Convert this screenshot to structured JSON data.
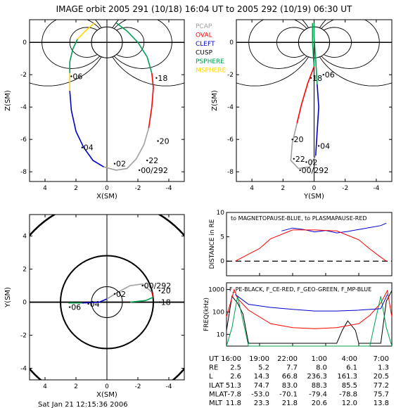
{
  "title": "IMAGE orbit 2005 291 (10/18) 16:04 UT to 2005 292 (10/19) 06:30 UT",
  "footer": "Sat Jan 21 12:15:36 2006",
  "legend": [
    {
      "label": "PCAP",
      "color": "#a0a0a0"
    },
    {
      "label": "OVAL",
      "color": "#ff0000"
    },
    {
      "label": "CLEFT",
      "color": "#0000cc"
    },
    {
      "label": "CUSP",
      "color": "#000000"
    },
    {
      "label": "PSPHERE",
      "color": "#00a050"
    },
    {
      "label": "MSPHERE",
      "color": "#ffd700"
    }
  ],
  "colors": {
    "pcap": "#a0a0a0",
    "oval": "#ff0000",
    "cleft": "#0000cc",
    "cusp": "#000000",
    "psphere": "#00a050",
    "msphere": "#ffd700"
  },
  "chart_data": [
    {
      "type": "line",
      "name": "xz-plane",
      "xlabel": "X(SM)",
      "ylabel": "Z(SM)",
      "xlim": [
        5,
        -5
      ],
      "ylim": [
        -8.6,
        1.4
      ],
      "xticks": [
        "4",
        "2",
        "0",
        "-2",
        "-4"
      ],
      "yticks": [
        "0",
        "-2",
        "-4",
        "-6",
        "-8"
      ],
      "hour_labels": [
        {
          "text": "06",
          "x": 2.3,
          "z": -2.1
        },
        {
          "text": "18",
          "x": -3.2,
          "z": -2.2
        },
        {
          "text": "04",
          "x": 1.6,
          "z": -6.5
        },
        {
          "text": "20",
          "x": -3.3,
          "z": -6.1
        },
        {
          "text": "02",
          "x": -0.5,
          "z": -7.5
        },
        {
          "text": "22",
          "x": -2.6,
          "z": -7.3
        },
        {
          "text": "00/292",
          "x": -2.1,
          "z": -7.9
        }
      ],
      "orbit": [
        {
          "seg": "msphere",
          "pts": [
            [
              0.8,
              1.2
            ],
            [
              1.4,
              0.7
            ],
            [
              1.9,
              0.2
            ]
          ]
        },
        {
          "seg": "psphere",
          "pts": [
            [
              1.9,
              0.2
            ],
            [
              2.2,
              -0.4
            ],
            [
              2.4,
              -1.2
            ],
            [
              2.4,
              -1.9
            ]
          ]
        },
        {
          "seg": "msphere",
          "pts": [
            [
              2.4,
              -1.9
            ],
            [
              2.4,
              -3.0
            ]
          ]
        },
        {
          "seg": "cleft",
          "pts": [
            [
              2.4,
              -3.0
            ],
            [
              2.3,
              -4.2
            ],
            [
              2.0,
              -5.5
            ],
            [
              1.5,
              -6.5
            ],
            [
              0.9,
              -7.3
            ],
            [
              0.2,
              -7.7
            ]
          ]
        },
        {
          "seg": "pcap",
          "pts": [
            [
              0.2,
              -7.7
            ],
            [
              -0.6,
              -7.9
            ],
            [
              -1.3,
              -7.8
            ],
            [
              -1.9,
              -7.2
            ],
            [
              -2.4,
              -6.3
            ],
            [
              -2.7,
              -5.3
            ]
          ]
        },
        {
          "seg": "oval",
          "pts": [
            [
              -2.7,
              -5.3
            ],
            [
              -2.9,
              -4.0
            ],
            [
              -3.0,
              -2.8
            ],
            [
              -2.9,
              -1.9
            ]
          ]
        },
        {
          "seg": "psphere",
          "pts": [
            [
              -2.9,
              -1.9
            ],
            [
              -2.6,
              -0.9
            ],
            [
              -2.0,
              0.0
            ],
            [
              -1.3,
              0.7
            ],
            [
              -0.6,
              1.2
            ]
          ]
        }
      ]
    },
    {
      "type": "line",
      "name": "yz-plane",
      "xlabel": "Y(SM)",
      "ylabel": "Z(SM)",
      "xlim": [
        5,
        -5
      ],
      "ylim": [
        -8.6,
        1.4
      ],
      "xticks": [
        "4",
        "2",
        "0",
        "-2",
        "-4"
      ],
      "yticks": [
        "0",
        "-2",
        "-4",
        "-6",
        "-8"
      ],
      "hour_labels": [
        {
          "text": "18",
          "x": 0.2,
          "z": -2.2
        },
        {
          "text": "06",
          "x": -0.6,
          "z": -2.0
        },
        {
          "text": "20",
          "x": 1.4,
          "z": -6.0
        },
        {
          "text": "04",
          "x": -0.3,
          "z": -6.4
        },
        {
          "text": "22",
          "x": 1.3,
          "z": -7.2
        },
        {
          "text": "02",
          "x": 0.5,
          "z": -7.4
        },
        {
          "text": "00/292",
          "x": 0.9,
          "z": -7.9
        }
      ],
      "orbit": [
        {
          "seg": "psphere",
          "pts": [
            [
              0.1,
              1.2
            ],
            [
              0.1,
              0.0
            ],
            [
              0.0,
              -1.5
            ]
          ]
        },
        {
          "seg": "oval",
          "pts": [
            [
              0.0,
              -1.5
            ],
            [
              0.4,
              -2.5
            ],
            [
              0.8,
              -3.8
            ],
            [
              1.1,
              -5.0
            ]
          ]
        },
        {
          "seg": "pcap",
          "pts": [
            [
              1.1,
              -5.0
            ],
            [
              1.4,
              -6.2
            ],
            [
              1.5,
              -7.3
            ],
            [
              1.0,
              -7.8
            ],
            [
              0.3,
              -7.7
            ],
            [
              -0.1,
              -7.0
            ]
          ]
        },
        {
          "seg": "cleft",
          "pts": [
            [
              -0.1,
              -7.0
            ],
            [
              -0.2,
              -5.5
            ],
            [
              -0.3,
              -4.0
            ],
            [
              -0.2,
              -2.6
            ]
          ]
        },
        {
          "seg": "psphere",
          "pts": [
            [
              -0.2,
              -2.6
            ],
            [
              -0.1,
              -1.0
            ],
            [
              0.0,
              0.3
            ],
            [
              0.0,
              1.2
            ]
          ]
        }
      ]
    },
    {
      "type": "line",
      "name": "xy-plane",
      "xlabel": "X(SM)",
      "ylabel": "Y(SM)",
      "xlim": [
        5,
        -5
      ],
      "ylim": [
        -4.7,
        5.3
      ],
      "xticks": [
        "4",
        "2",
        "0",
        "-2",
        "-4"
      ],
      "yticks": [
        "-4",
        "-2",
        "0",
        "2",
        "4"
      ],
      "hour_labels": [
        {
          "text": "06",
          "x": 2.4,
          "y": -0.3
        },
        {
          "text": "04",
          "x": 1.2,
          "y": -0.1
        },
        {
          "text": "18",
          "x": -3.4,
          "y": 0.0
        },
        {
          "text": "20",
          "x": -3.4,
          "y": 0.7
        },
        {
          "text": "02",
          "x": -0.5,
          "y": 0.5
        },
        {
          "text": "00/292",
          "x": -2.3,
          "y": 1.0
        }
      ],
      "orbit": [
        {
          "seg": "psphere",
          "pts": [
            [
              2.5,
              -0.05
            ],
            [
              1.6,
              -0.05
            ]
          ]
        },
        {
          "seg": "cleft",
          "pts": [
            [
              1.6,
              -0.05
            ],
            [
              0.5,
              0.0
            ],
            [
              0.0,
              0.2
            ]
          ]
        },
        {
          "seg": "pcap",
          "pts": [
            [
              0.0,
              0.2
            ],
            [
              -0.7,
              0.6
            ],
            [
              -1.5,
              1.0
            ],
            [
              -2.3,
              1.1
            ],
            [
              -2.9,
              0.6
            ]
          ]
        },
        {
          "seg": "oval",
          "pts": [
            [
              -2.9,
              0.6
            ],
            [
              -3.0,
              0.3
            ]
          ]
        },
        {
          "seg": "psphere",
          "pts": [
            [
              -3.0,
              0.3
            ],
            [
              -2.5,
              0.1
            ],
            [
              -1.5,
              0.0
            ]
          ]
        }
      ]
    },
    {
      "type": "line",
      "name": "distance",
      "ylabel": "DISTANCE in RE",
      "subtitle": "to MAGNETOPAUSE-BLUE, to PLASMAPAUSE-RED",
      "xlim": [
        16,
        31
      ],
      "ylim": [
        -3,
        10
      ],
      "yticks": [
        "10",
        "5",
        "0"
      ],
      "series": [
        {
          "name": "magnetopause",
          "color": "#0000cc",
          "x": [
            21,
            22,
            23,
            24,
            25,
            26,
            27,
            28,
            29,
            30,
            30.5
          ],
          "y": [
            6.2,
            6.8,
            6.5,
            6.0,
            6.3,
            5.8,
            6.1,
            6.5,
            6.9,
            7.3,
            7.8
          ]
        },
        {
          "name": "plasmapause",
          "color": "#ff0000",
          "x": [
            16.8,
            19,
            20,
            22,
            24,
            26,
            28,
            29,
            30,
            30.5
          ],
          "y": [
            0,
            2.6,
            4.6,
            6.4,
            6.4,
            6.2,
            4.4,
            2.5,
            0.8,
            0
          ]
        }
      ]
    },
    {
      "type": "line",
      "name": "frequency",
      "ylabel": "FREQ(kHz)",
      "subtitle": "F_PE-BLACK, F_CE-RED, F_GEO-GREEN, F_MP-BLUE",
      "xlim": [
        16,
        31
      ],
      "ylim_log": [
        3,
        2000
      ],
      "yticks": [
        "1000",
        "100",
        "10"
      ],
      "series": [
        {
          "name": "F_PE",
          "color": "#000000",
          "x": [
            16,
            16.5,
            17,
            17.5,
            18,
            19,
            20,
            22,
            24,
            26,
            26.5,
            27,
            27.7,
            28,
            29,
            30,
            30.5,
            31
          ],
          "y": [
            15,
            500,
            250,
            80,
            4,
            4,
            4,
            4,
            4,
            4,
            15,
            40,
            15,
            4,
            4,
            4,
            300,
            900
          ]
        },
        {
          "name": "F_CE",
          "color": "#ff0000",
          "x": [
            16,
            16.7,
            17,
            18,
            20,
            22,
            24,
            26,
            28,
            29,
            30,
            30.6,
            31
          ],
          "y": [
            60,
            1000,
            400,
            120,
            30,
            20,
            18,
            20,
            30,
            70,
            250,
            900,
            60
          ]
        },
        {
          "name": "F_GEO",
          "color": "#00a050",
          "x": [
            16,
            16.5,
            17,
            17.5,
            18,
            29,
            29.5,
            30,
            30.5,
            31
          ],
          "y": [
            3,
            20,
            500,
            40,
            3,
            3,
            40,
            500,
            20,
            3
          ]
        },
        {
          "name": "F_MP",
          "color": "#0000cc",
          "x": [
            16.8,
            18,
            20,
            22,
            24,
            26,
            28,
            30,
            30.6
          ],
          "y": [
            600,
            220,
            160,
            130,
            110,
            110,
            120,
            140,
            600
          ]
        }
      ]
    },
    {
      "type": "table",
      "name": "ephemeris",
      "columns": [
        "16:00",
        "19:00",
        "22:00",
        "1:00",
        "4:00",
        "7:00"
      ],
      "col_header": "UT",
      "rows": [
        {
          "label": "RE",
          "values": [
            "2.5",
            "5.2",
            "7.7",
            "8.0",
            "6.1",
            "1.3"
          ]
        },
        {
          "label": "L",
          "values": [
            "2.6",
            "14.3",
            "66.8",
            "236.3",
            "161.3",
            "20.5"
          ]
        },
        {
          "label": "ILAT",
          "values": [
            "51.3",
            "74.7",
            "83.0",
            "88.3",
            "85.5",
            "77.2"
          ]
        },
        {
          "label": "MLAT",
          "values": [
            "-7.8",
            "-53.0",
            "-70.1",
            "-79.4",
            "-78.8",
            "75.7"
          ]
        },
        {
          "label": "MLT",
          "values": [
            "11.8",
            "23.3",
            "21.8",
            "20.6",
            "12.0",
            "13.8"
          ]
        }
      ]
    }
  ]
}
